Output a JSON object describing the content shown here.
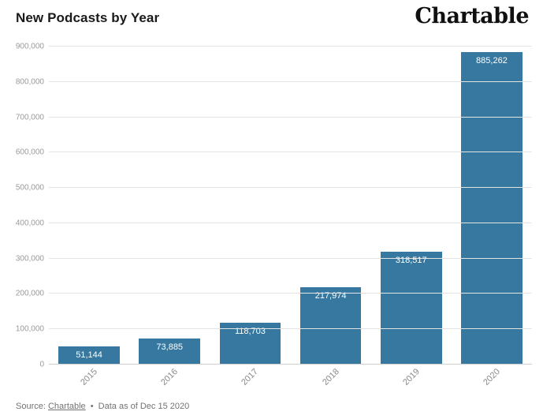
{
  "header": {
    "title": "New Podcasts by Year",
    "logo": "Chartable"
  },
  "chart_data": {
    "type": "bar",
    "title": "New Podcasts by Year",
    "categories": [
      "2015",
      "2016",
      "2017",
      "2018",
      "2019",
      "2020"
    ],
    "values": [
      51144,
      73885,
      118703,
      217974,
      318517,
      885262
    ],
    "value_labels": [
      "51,144",
      "73,885",
      "118,703",
      "217,974",
      "318,517",
      "885,262"
    ],
    "ylim": [
      0,
      900000
    ],
    "ytick_step": 100000,
    "yticks": [
      "0",
      "100,000",
      "200,000",
      "300,000",
      "400,000",
      "500,000",
      "600,000",
      "700,000",
      "800,000",
      "900,000"
    ],
    "xlabel": "",
    "ylabel": "",
    "grid": true,
    "legend": false,
    "bar_color": "#36789f",
    "bar_label_color": "#ffffff"
  },
  "footer": {
    "source_prefix": "Source:",
    "source_link": "Chartable",
    "separator": "•",
    "note": "Data as of Dec 15 2020"
  }
}
